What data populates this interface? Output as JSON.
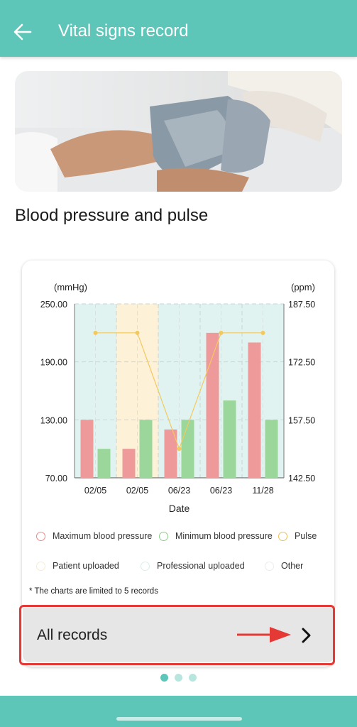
{
  "app_bar": {
    "title": "Vital signs record"
  },
  "hero": {
    "photo_alt": "Blood pressure cuff being wrapped on an arm"
  },
  "section": {
    "title": "Blood pressure and pulse"
  },
  "chart_data": {
    "type": "bar",
    "y_left_label": "(mmHg)",
    "y_right_label": "(ppm)",
    "xlabel": "Date",
    "categories": [
      "02/05",
      "02/05",
      "06/23",
      "06/23",
      "11/28"
    ],
    "left_ylim": [
      70,
      250
    ],
    "right_ylim": [
      142.5,
      187.5
    ],
    "left_ticks": [
      "250.00",
      "190.00",
      "130.00",
      "70.00"
    ],
    "right_ticks": [
      "187.50",
      "172.50",
      "157.50",
      "142.50"
    ],
    "series": [
      {
        "name": "Maximum blood pressure",
        "values": [
          130,
          100,
          120,
          220,
          210
        ],
        "color": "#ef9a9a"
      },
      {
        "name": "Minimum blood pressure",
        "values": [
          100,
          130,
          130,
          150,
          130
        ],
        "color": "#9bd79b"
      },
      {
        "name": "Pulse",
        "values": [
          180,
          180,
          150,
          180,
          180
        ],
        "color": "#f2c95e",
        "axis": "right"
      }
    ],
    "backgrounds": [
      "Professional uploaded",
      "Patient uploaded",
      "Professional uploaded",
      "Professional uploaded",
      "Professional uploaded"
    ],
    "background_colors": {
      "Patient uploaded": "#fdf1d8",
      "Professional uploaded": "#e1f3f0"
    },
    "grid": true
  },
  "legend": {
    "items": [
      {
        "label": "Maximum blood pressure",
        "color": "#e88a8a"
      },
      {
        "label": "Minimum blood pressure",
        "color": "#86cf86"
      },
      {
        "label": "Pulse",
        "color": "#ecc152"
      },
      {
        "label": "Patient uploaded",
        "color": "#f7ecd4"
      },
      {
        "label": "Professional uploaded",
        "color": "#d8efea"
      },
      {
        "label": "Other",
        "color": "#ececec"
      }
    ]
  },
  "note": "* The charts are limited to 5 records",
  "records": {
    "label": "All records"
  },
  "pager": {
    "active": 0,
    "count": 3,
    "active_color": "#5dc6b8",
    "inactive_color": "#b9e5df"
  },
  "colors": {
    "accent": "#5dc6b8",
    "highlight": "#e53935"
  }
}
